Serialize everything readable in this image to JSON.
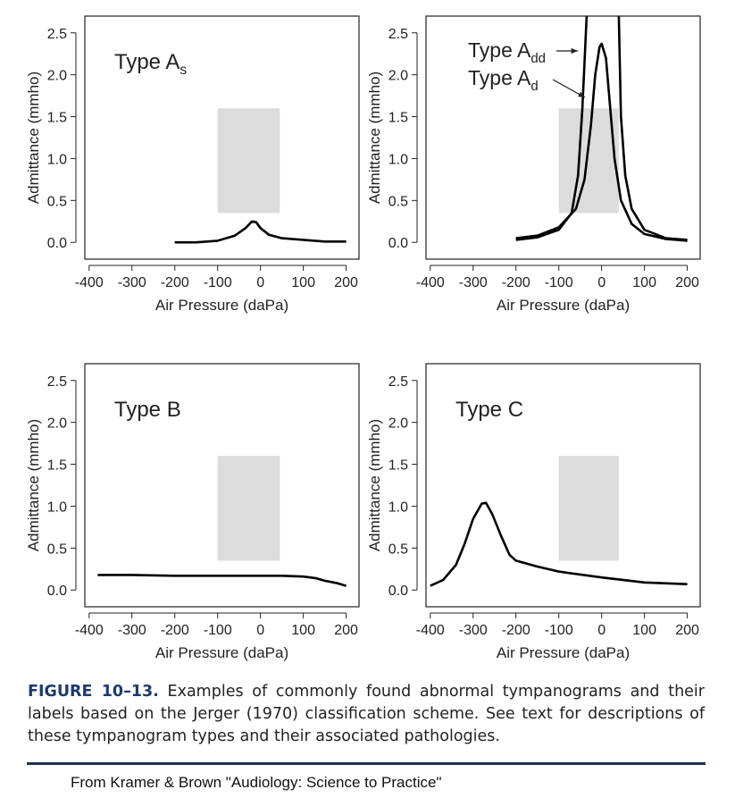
{
  "chart_data": [
    {
      "type": "line",
      "annotation": "Type A",
      "annotation_sub": "s",
      "xlabel": "Air Pressure (daPa)",
      "ylabel": "Admittance (mmho)",
      "xlim": [
        -410,
        230
      ],
      "ylim": [
        -0.2,
        2.7
      ],
      "xticks": [
        -400,
        -300,
        -200,
        -100,
        0,
        100,
        200
      ],
      "yticks": [
        {
          "value": 0,
          "label": "0.0"
        },
        0.5,
        {
          "value": 1,
          "label": "1.0"
        },
        1.5,
        {
          "value": 2,
          "label": "2.0"
        },
        2.5
      ],
      "shaded_region": {
        "x": [
          -100,
          45
        ],
        "y": [
          0.35,
          1.6
        ],
        "color": "#dcdcdc"
      },
      "series": [
        {
          "color": "#000000",
          "x": [
            -200,
            -150,
            -100,
            -60,
            -35,
            -20,
            -10,
            0,
            20,
            50,
            100,
            150,
            200
          ],
          "values": [
            0,
            0,
            0.02,
            0.08,
            0.17,
            0.25,
            0.24,
            0.17,
            0.09,
            0.05,
            0.03,
            0.01,
            0.01
          ]
        }
      ]
    },
    {
      "type": "line",
      "xlabel": "Air Pressure (daPa)",
      "ylabel": "Admittance (mmho)",
      "xlim": [
        -410,
        230
      ],
      "ylim": [
        -0.2,
        2.7
      ],
      "xticks": [
        -400,
        -300,
        -200,
        -100,
        0,
        100,
        200
      ],
      "yticks": [
        {
          "value": 0,
          "label": "0.0"
        },
        0.5,
        {
          "value": 1,
          "label": "1.0"
        },
        1.5,
        {
          "value": 2,
          "label": "2.0"
        },
        2.5
      ],
      "shaded_region": {
        "x": [
          -100,
          40
        ],
        "y": [
          0.35,
          1.6
        ],
        "color": "#dcdcdc"
      },
      "series": [
        {
          "name": "Type A",
          "name_sub": "dd",
          "color": "#000000",
          "x": [
            -200,
            -150,
            -100,
            -70,
            -55,
            -45,
            -35,
            0,
            40,
            45,
            55,
            70,
            100,
            150,
            200
          ],
          "values": [
            0.03,
            0.06,
            0.15,
            0.35,
            0.8,
            1.6,
            2.7,
            null,
            2.7,
            1.5,
            0.8,
            0.4,
            0.15,
            0.05,
            0.03
          ]
        },
        {
          "name": "Type A",
          "name_sub": "d",
          "color": "#000000",
          "x": [
            -200,
            -150,
            -100,
            -60,
            -40,
            -25,
            -15,
            -5,
            0,
            10,
            20,
            30,
            45,
            70,
            100,
            150,
            200
          ],
          "values": [
            0.05,
            0.08,
            0.18,
            0.4,
            0.75,
            1.4,
            2.0,
            2.33,
            2.37,
            2.2,
            1.6,
            1.0,
            0.5,
            0.22,
            0.1,
            0.04,
            0.02
          ]
        }
      ]
    },
    {
      "type": "line",
      "annotation": "Type B",
      "xlabel": "Air Pressure (daPa)",
      "ylabel": "Admittance (mmho)",
      "xlim": [
        -410,
        230
      ],
      "ylim": [
        -0.2,
        2.7
      ],
      "xticks": [
        -400,
        -300,
        -200,
        -100,
        0,
        100,
        200
      ],
      "yticks": [
        {
          "value": 0,
          "label": "0.0"
        },
        0.5,
        {
          "value": 1,
          "label": "1.0"
        },
        1.5,
        {
          "value": 2,
          "label": "2.0"
        },
        2.5
      ],
      "shaded_region": {
        "x": [
          -100,
          45
        ],
        "y": [
          0.35,
          1.6
        ],
        "color": "#dcdcdc"
      },
      "series": [
        {
          "color": "#000000",
          "x": [
            -380,
            -300,
            -200,
            -100,
            0,
            50,
            100,
            130,
            150,
            180,
            200
          ],
          "values": [
            0.18,
            0.18,
            0.17,
            0.17,
            0.17,
            0.17,
            0.16,
            0.14,
            0.11,
            0.08,
            0.05
          ]
        }
      ]
    },
    {
      "type": "line",
      "annotation": "Type C",
      "xlabel": "Air Pressure (daPa)",
      "ylabel": "Admittance (mmho)",
      "xlim": [
        -410,
        230
      ],
      "ylim": [
        -0.2,
        2.7
      ],
      "xticks": [
        -400,
        -300,
        -200,
        -100,
        0,
        100,
        200
      ],
      "yticks": [
        {
          "value": 0,
          "label": "0.0"
        },
        0.5,
        {
          "value": 1,
          "label": "1.0"
        },
        1.5,
        {
          "value": 2,
          "label": "2.0"
        },
        2.5
      ],
      "shaded_region": {
        "x": [
          -100,
          40
        ],
        "y": [
          0.35,
          1.6
        ],
        "color": "#dcdcdc"
      },
      "series": [
        {
          "color": "#000000",
          "x": [
            -400,
            -370,
            -340,
            -320,
            -300,
            -280,
            -270,
            -255,
            -235,
            -215,
            -200,
            -150,
            -100,
            0,
            100,
            200
          ],
          "values": [
            0.05,
            0.12,
            0.3,
            0.55,
            0.85,
            1.03,
            1.04,
            0.9,
            0.65,
            0.42,
            0.35,
            0.28,
            0.22,
            0.15,
            0.09,
            0.07
          ]
        }
      ]
    }
  ],
  "caption": {
    "label": "FIGURE 10–13.",
    "text": "Examples of commonly found abnormal tympanograms and their labels based on the Jerger (1970) classification scheme. See text for descriptions of these tympanogram types and their associated pathologies."
  },
  "source": "From Kramer & Brown \"Audiology: Science to Practice\""
}
